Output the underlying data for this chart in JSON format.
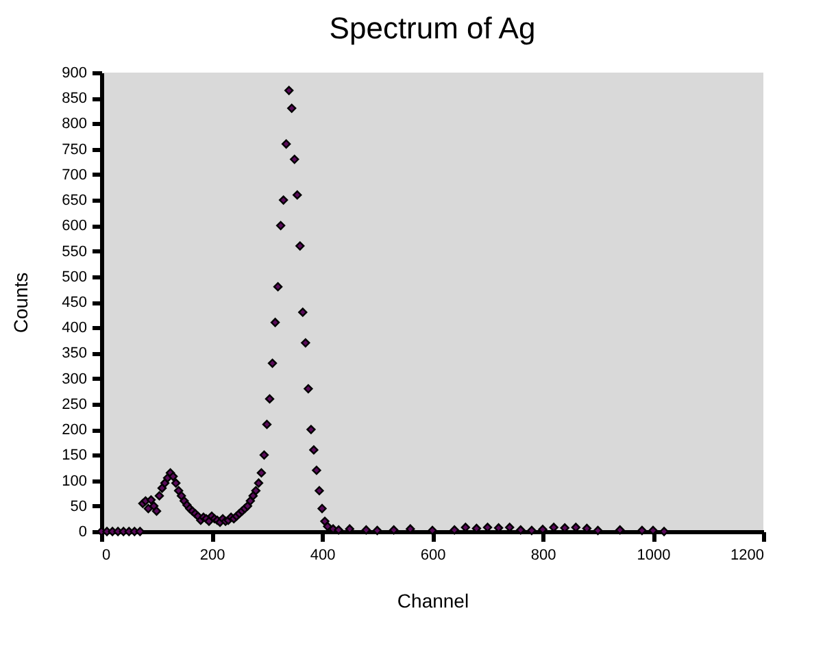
{
  "chart_data": {
    "type": "scatter",
    "title": "Spectrum of Ag",
    "xlabel": "Channel",
    "ylabel": "Counts",
    "marker": "diamond",
    "grid": false,
    "xlim": [
      0,
      1200
    ],
    "xticks": [
      0,
      200,
      400,
      600,
      800,
      1000,
      1200
    ],
    "ylim": [
      0,
      900
    ],
    "yticks": [
      0,
      50,
      100,
      150,
      200,
      250,
      300,
      350,
      400,
      450,
      500,
      550,
      600,
      650,
      700,
      750,
      800,
      850,
      900
    ],
    "series": [
      {
        "color": "#5a0a5a",
        "x": [
          0,
          10,
          20,
          30,
          40,
          50,
          60,
          70,
          75,
          80,
          85,
          90,
          95,
          100,
          105,
          110,
          115,
          120,
          125,
          130,
          135,
          140,
          145,
          150,
          155,
          160,
          165,
          170,
          175,
          180,
          185,
          190,
          195,
          200,
          205,
          210,
          215,
          220,
          225,
          230,
          235,
          240,
          245,
          250,
          255,
          260,
          265,
          270,
          275,
          280,
          285,
          290,
          295,
          300,
          305,
          310,
          315,
          320,
          325,
          330,
          335,
          340,
          345,
          350,
          355,
          360,
          365,
          370,
          375,
          380,
          385,
          390,
          395,
          400,
          405,
          410,
          420,
          430,
          450,
          480,
          500,
          530,
          560,
          600,
          640,
          660,
          680,
          700,
          720,
          740,
          760,
          780,
          800,
          820,
          840,
          860,
          880,
          900,
          940,
          980,
          1000,
          1020
        ],
        "values": [
          0,
          0,
          0,
          0,
          0,
          0,
          0,
          0,
          55,
          60,
          45,
          62,
          50,
          40,
          70,
          85,
          95,
          105,
          115,
          108,
          95,
          80,
          70,
          60,
          52,
          45,
          40,
          35,
          30,
          22,
          28,
          25,
          20,
          30,
          25,
          22,
          18,
          25,
          20,
          22,
          28,
          25,
          30,
          35,
          40,
          45,
          50,
          60,
          70,
          80,
          95,
          115,
          150,
          210,
          260,
          330,
          410,
          480,
          600,
          650,
          760,
          865,
          830,
          730,
          660,
          560,
          430,
          370,
          280,
          200,
          160,
          120,
          80,
          45,
          20,
          10,
          5,
          3,
          5,
          3,
          2,
          3,
          5,
          2,
          3,
          8,
          6,
          8,
          7,
          8,
          3,
          2,
          4,
          8,
          7,
          8,
          6,
          2,
          3,
          2,
          2,
          0
        ]
      }
    ]
  }
}
